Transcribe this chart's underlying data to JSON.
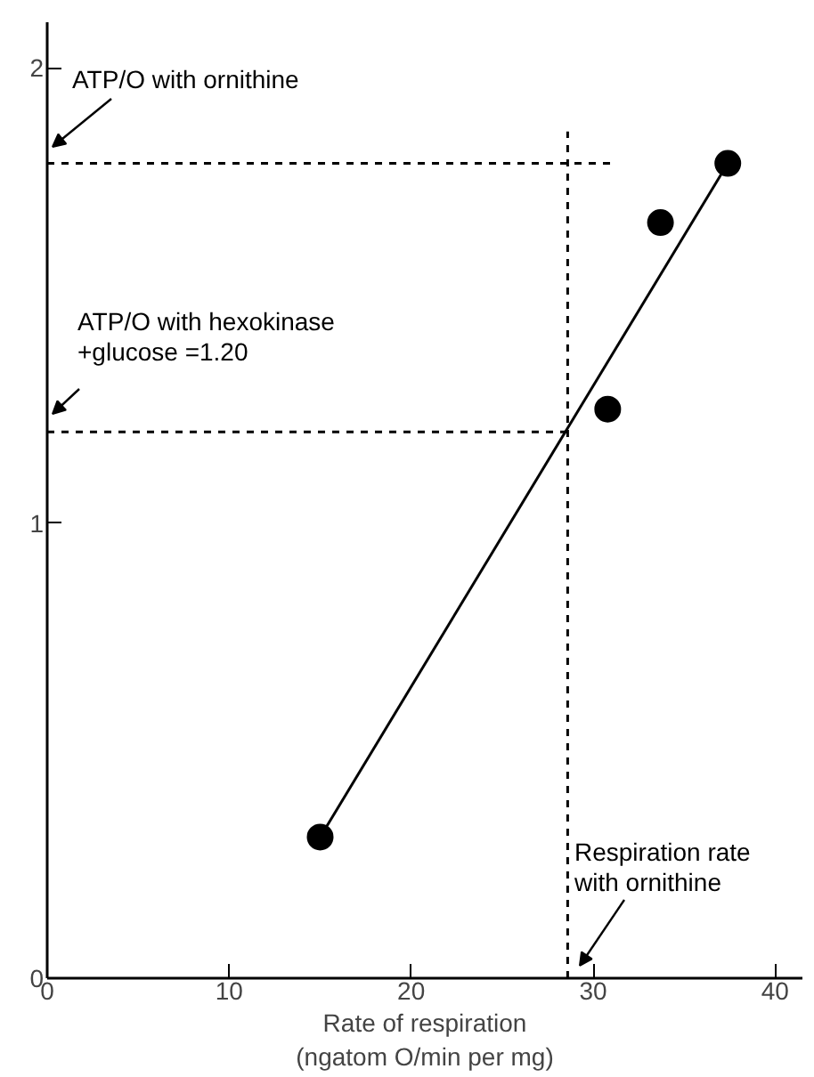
{
  "chart_data": {
    "type": "scatter",
    "xlabel": "Rate of respiration\n(ngatom O/min per mg)",
    "xlim": [
      0,
      41.5
    ],
    "ylim": [
      0,
      2.1
    ],
    "xticks": [
      0,
      10,
      20,
      30,
      40
    ],
    "yticks": [
      0,
      1,
      2
    ],
    "grid": false,
    "series": [
      {
        "color": "#000000",
        "marker": "circle",
        "x": [
          15,
          30.8,
          33.7,
          37.4
        ],
        "values": [
          0.31,
          1.25,
          1.66,
          1.79
        ]
      },
      {
        "type": "line",
        "color": "#000000",
        "x": [
          15,
          37.4
        ],
        "values": [
          0.31,
          1.79
        ],
        "line_style": "solid"
      },
      {
        "type": "line",
        "color": "#000000",
        "x": [
          0,
          31.1
        ],
        "values": [
          1.79,
          1.79
        ],
        "line_style": "dashed"
      },
      {
        "type": "line",
        "color": "#000000",
        "x": [
          0,
          28.6
        ],
        "values": [
          1.2,
          1.2
        ],
        "line_style": "dashed"
      },
      {
        "type": "line",
        "color": "#000000",
        "x": [
          28.6,
          28.6
        ],
        "values": [
          0,
          1.86
        ],
        "line_style": "dashed"
      }
    ],
    "annotations": [
      "ATP/O with ornithine",
      "ATP/O with hexokinase\n+glucose =1.20",
      "Respiration rate\nwith ornithine"
    ]
  }
}
